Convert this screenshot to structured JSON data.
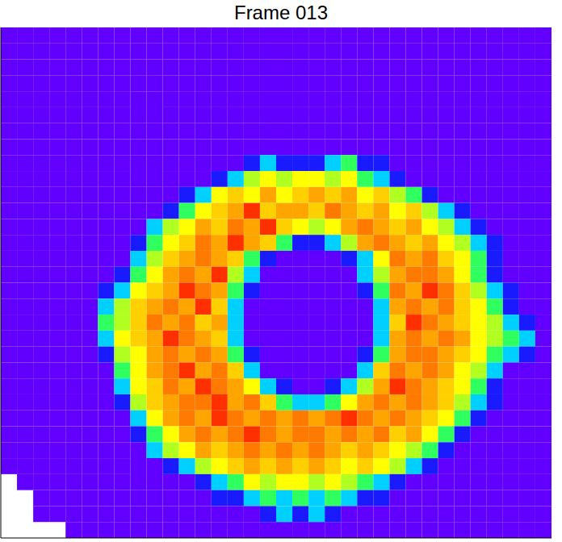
{
  "chart_data": {
    "type": "heatmap",
    "title": "Frame 013",
    "xlim": [
      0,
      34
    ],
    "ylim": [
      0,
      32
    ],
    "zlim": [
      0,
      10
    ],
    "tick_labels": false,
    "cells": [
      [
        0,
        0,
        0,
        0,
        0,
        0,
        0,
        0,
        0,
        0,
        0,
        0,
        0,
        0,
        0,
        0,
        0,
        0,
        0,
        0,
        0,
        0,
        0,
        0,
        0,
        0,
        0,
        0,
        0,
        0,
        0,
        0,
        0,
        0
      ],
      [
        0,
        0,
        0,
        0,
        0,
        0,
        0,
        0,
        0,
        0,
        0,
        0,
        0,
        0,
        0,
        0,
        0,
        0,
        0,
        0,
        0,
        0,
        0,
        0,
        0,
        0,
        0,
        0,
        0,
        0,
        0,
        0,
        0,
        0
      ],
      [
        0,
        0,
        0,
        0,
        0,
        0,
        0,
        0,
        0,
        0,
        0,
        0,
        0,
        0,
        0,
        0,
        0,
        0,
        0,
        0,
        0,
        0,
        0,
        0,
        0,
        0,
        0,
        0,
        0,
        0,
        0,
        0,
        0,
        0
      ],
      [
        0,
        0,
        0,
        0,
        0,
        0,
        0,
        0,
        0,
        0,
        0,
        0,
        0,
        0,
        0,
        0,
        0,
        0,
        0,
        0,
        0,
        0,
        0,
        0,
        0,
        0,
        0,
        0,
        0,
        0,
        0,
        0,
        0,
        0
      ],
      [
        0,
        0,
        0,
        0,
        0,
        0,
        0,
        0,
        0,
        0,
        0,
        0,
        0,
        0,
        0,
        0,
        0,
        0,
        0,
        0,
        0,
        0,
        0,
        0,
        0,
        0,
        0,
        0,
        0,
        0,
        0,
        0,
        0,
        0
      ],
      [
        0,
        0,
        0,
        0,
        0,
        0,
        0,
        0,
        0,
        0,
        0,
        0,
        0,
        0,
        0,
        0,
        0,
        0,
        0,
        0,
        0,
        0,
        0,
        0,
        0,
        0,
        0,
        0,
        0,
        0,
        0,
        0,
        0,
        0
      ],
      [
        0,
        0,
        0,
        0,
        0,
        0,
        0,
        0,
        0,
        0,
        0,
        0,
        0,
        0,
        0,
        0,
        0,
        0,
        0,
        0,
        0,
        0,
        0,
        0,
        0,
        0,
        0,
        0,
        0,
        0,
        0,
        0,
        0,
        0
      ],
      [
        0,
        0,
        0,
        0,
        0,
        0,
        0,
        0,
        0,
        0,
        0,
        0,
        0,
        0,
        0,
        0,
        0,
        0,
        0,
        0,
        0,
        0,
        0,
        0,
        0,
        0,
        0,
        0,
        0,
        0,
        0,
        0,
        0,
        0
      ],
      [
        0,
        0,
        0,
        0,
        0,
        0,
        0,
        0,
        0,
        0,
        0,
        0,
        0,
        0,
        0,
        1,
        2,
        1,
        1,
        1,
        2,
        3,
        1,
        1,
        0,
        0,
        0,
        0,
        0,
        0,
        0,
        0,
        0,
        0
      ],
      [
        0,
        0,
        0,
        0,
        0,
        0,
        0,
        0,
        0,
        0,
        0,
        0,
        0,
        1,
        2,
        4,
        5,
        4,
        5,
        5,
        4,
        5,
        3,
        2,
        1,
        0,
        0,
        0,
        0,
        0,
        0,
        0,
        0,
        0
      ],
      [
        0,
        0,
        0,
        0,
        0,
        0,
        0,
        0,
        0,
        0,
        0,
        1,
        2,
        5,
        6,
        5,
        7,
        5,
        6,
        7,
        6,
        7,
        5,
        6,
        4,
        3,
        1,
        0,
        0,
        0,
        0,
        0,
        0,
        0
      ],
      [
        0,
        0,
        0,
        0,
        0,
        0,
        0,
        0,
        0,
        0,
        1,
        3,
        5,
        6,
        7,
        9,
        6,
        7,
        7,
        6,
        8,
        7,
        6,
        7,
        5,
        6,
        4,
        2,
        1,
        0,
        0,
        0,
        0,
        0
      ],
      [
        0,
        0,
        0,
        0,
        0,
        0,
        0,
        0,
        0,
        2,
        4,
        5,
        7,
        6,
        8,
        7,
        9,
        6,
        5,
        4,
        5,
        7,
        8,
        7,
        6,
        7,
        5,
        4,
        2,
        1,
        0,
        0,
        0,
        0
      ],
      [
        0,
        0,
        0,
        0,
        0,
        0,
        0,
        0,
        1,
        3,
        5,
        6,
        8,
        7,
        9,
        7,
        6,
        3,
        1,
        1,
        2,
        4,
        7,
        8,
        7,
        6,
        7,
        5,
        4,
        2,
        1,
        0,
        0,
        0
      ],
      [
        0,
        0,
        0,
        0,
        0,
        0,
        0,
        0,
        2,
        4,
        6,
        7,
        8,
        7,
        6,
        3,
        1,
        0,
        0,
        0,
        0,
        1,
        2,
        5,
        8,
        7,
        8,
        6,
        5,
        3,
        1,
        0,
        0,
        0
      ],
      [
        0,
        0,
        0,
        0,
        0,
        0,
        0,
        1,
        3,
        5,
        7,
        8,
        7,
        9,
        4,
        2,
        0,
        0,
        0,
        0,
        0,
        0,
        2,
        4,
        7,
        8,
        8,
        7,
        5,
        3,
        1,
        0,
        0,
        0
      ],
      [
        0,
        0,
        0,
        0,
        0,
        0,
        1,
        2,
        5,
        6,
        7,
        9,
        8,
        7,
        3,
        1,
        0,
        0,
        0,
        0,
        0,
        0,
        1,
        3,
        8,
        7,
        9,
        8,
        6,
        4,
        2,
        1,
        0,
        0
      ],
      [
        0,
        0,
        0,
        0,
        0,
        0,
        2,
        4,
        6,
        7,
        8,
        7,
        9,
        6,
        2,
        0,
        0,
        0,
        0,
        0,
        0,
        0,
        0,
        2,
        7,
        8,
        7,
        8,
        6,
        5,
        3,
        1,
        0,
        0
      ],
      [
        0,
        0,
        0,
        0,
        0,
        0,
        3,
        4,
        6,
        8,
        7,
        8,
        6,
        7,
        2,
        0,
        0,
        0,
        0,
        0,
        0,
        0,
        0,
        2,
        6,
        9,
        8,
        7,
        6,
        5,
        4,
        2,
        1,
        0
      ],
      [
        0,
        0,
        0,
        0,
        0,
        0,
        2,
        5,
        6,
        7,
        9,
        8,
        7,
        6,
        2,
        0,
        0,
        0,
        0,
        0,
        0,
        0,
        0,
        2,
        7,
        8,
        7,
        8,
        7,
        5,
        4,
        3,
        2,
        0
      ],
      [
        0,
        0,
        0,
        0,
        0,
        0,
        1,
        4,
        5,
        7,
        8,
        7,
        8,
        7,
        3,
        1,
        0,
        0,
        0,
        0,
        0,
        0,
        1,
        3,
        7,
        8,
        8,
        7,
        6,
        5,
        3,
        2,
        1,
        0
      ],
      [
        0,
        0,
        0,
        0,
        0,
        0,
        0,
        3,
        5,
        7,
        8,
        9,
        7,
        8,
        6,
        2,
        0,
        0,
        0,
        0,
        0,
        0,
        2,
        6,
        8,
        7,
        8,
        7,
        5,
        4,
        2,
        0,
        0,
        0
      ],
      [
        0,
        0,
        0,
        0,
        0,
        0,
        0,
        2,
        5,
        6,
        8,
        7,
        9,
        8,
        7,
        5,
        2,
        1,
        0,
        0,
        1,
        2,
        4,
        7,
        9,
        8,
        7,
        6,
        5,
        3,
        1,
        0,
        0,
        0
      ],
      [
        0,
        0,
        0,
        0,
        0,
        0,
        0,
        1,
        4,
        6,
        7,
        8,
        8,
        9,
        7,
        8,
        6,
        3,
        2,
        2,
        3,
        5,
        7,
        8,
        7,
        8,
        7,
        6,
        4,
        2,
        1,
        0,
        0,
        0
      ],
      [
        0,
        0,
        0,
        0,
        0,
        0,
        0,
        0,
        2,
        5,
        7,
        8,
        7,
        9,
        8,
        7,
        8,
        7,
        8,
        7,
        8,
        9,
        8,
        7,
        8,
        7,
        6,
        5,
        3,
        1,
        0,
        0,
        0,
        0
      ],
      [
        0,
        0,
        0,
        0,
        0,
        0,
        0,
        0,
        1,
        3,
        5,
        7,
        8,
        7,
        8,
        9,
        8,
        7,
        8,
        8,
        7,
        8,
        7,
        8,
        6,
        7,
        5,
        3,
        1,
        0,
        0,
        0,
        0,
        0
      ],
      [
        0,
        0,
        0,
        0,
        0,
        0,
        0,
        0,
        0,
        2,
        4,
        5,
        7,
        6,
        7,
        8,
        7,
        8,
        7,
        8,
        7,
        6,
        7,
        6,
        5,
        4,
        3,
        1,
        0,
        0,
        0,
        0,
        0,
        0
      ],
      [
        0,
        0,
        0,
        0,
        0,
        0,
        0,
        0,
        0,
        0,
        1,
        2,
        4,
        5,
        6,
        7,
        6,
        7,
        6,
        7,
        6,
        5,
        6,
        5,
        4,
        2,
        1,
        0,
        0,
        0,
        0,
        0,
        0,
        0
      ],
      [
        null,
        0,
        0,
        0,
        0,
        0,
        0,
        0,
        0,
        0,
        0,
        0,
        1,
        2,
        3,
        5,
        4,
        5,
        5,
        4,
        5,
        4,
        3,
        2,
        1,
        0,
        0,
        0,
        0,
        0,
        0,
        0,
        0,
        0
      ],
      [
        null,
        null,
        0,
        0,
        0,
        0,
        0,
        0,
        0,
        0,
        0,
        0,
        0,
        1,
        1,
        2,
        3,
        2,
        3,
        2,
        3,
        2,
        1,
        1,
        0,
        0,
        0,
        0,
        0,
        0,
        0,
        0,
        0,
        0
      ],
      [
        null,
        null,
        0,
        0,
        0,
        0,
        0,
        0,
        0,
        0,
        0,
        0,
        0,
        0,
        0,
        0,
        1,
        2,
        1,
        2,
        1,
        0,
        0,
        0,
        0,
        0,
        0,
        0,
        0,
        0,
        0,
        0,
        0,
        0
      ],
      [
        null,
        null,
        null,
        null,
        0,
        0,
        0,
        0,
        0,
        0,
        0,
        0,
        0,
        0,
        0,
        0,
        0,
        0,
        0,
        0,
        0,
        0,
        0,
        0,
        0,
        0,
        0,
        0,
        0,
        0,
        0,
        0,
        0,
        0
      ]
    ]
  }
}
